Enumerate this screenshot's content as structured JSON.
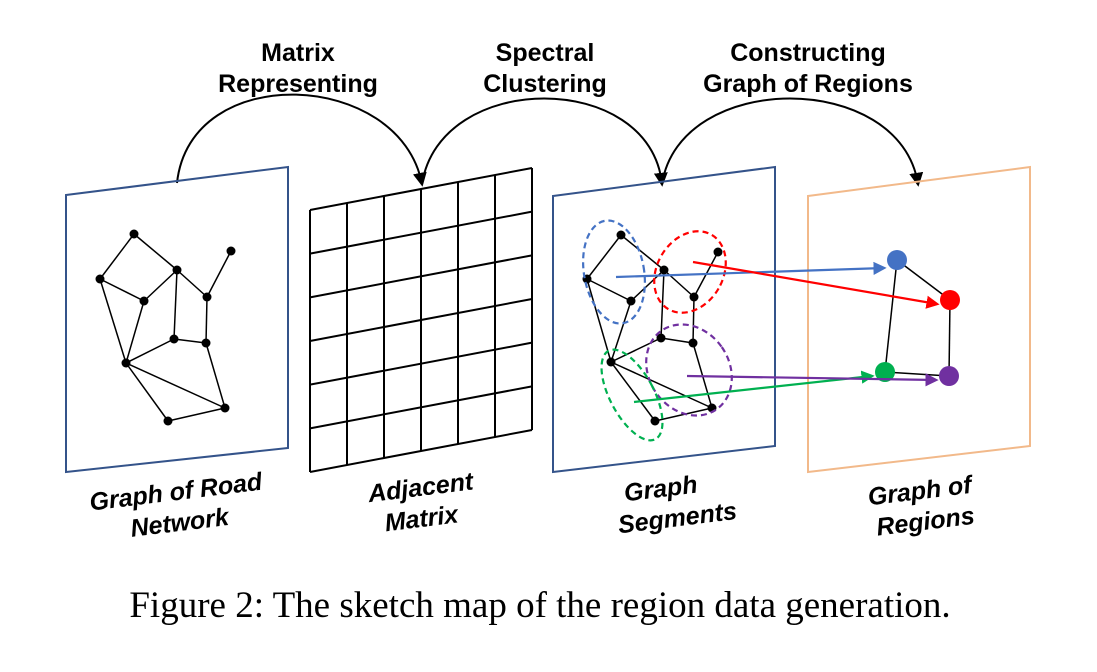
{
  "steps": [
    {
      "line1": "Matrix",
      "line2": "Representing"
    },
    {
      "line1": "Spectral",
      "line2": "Clustering"
    },
    {
      "line1": "Constructing",
      "line2": "Graph of Regions"
    }
  ],
  "panels": [
    {
      "line1": "Graph of Road",
      "line2": "Network"
    },
    {
      "line1": "Adjacent",
      "line2": "Matrix"
    },
    {
      "line1": "Graph",
      "line2": "Segments"
    },
    {
      "line1": "Graph of",
      "line2": "Regions"
    }
  ],
  "caption": "Figure 2: The sketch map of the region data generation.",
  "colors": {
    "panel_border": "#34538a",
    "regions_border": "#f2b98a",
    "blue": "#4472c4",
    "red": "#ff0000",
    "green": "#00b050",
    "purple": "#7030a0"
  }
}
